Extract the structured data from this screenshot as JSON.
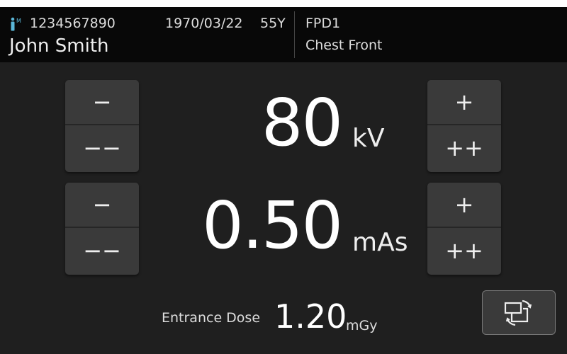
{
  "patient": {
    "icon": "patient-male-icon",
    "gender_mark": "M",
    "id": "1234567890",
    "name": "John Smith",
    "dob": "1970/03/22",
    "age": "55Y"
  },
  "exam": {
    "detector": "FPD1",
    "protocol": "Chest Front"
  },
  "kv": {
    "value": "80",
    "unit": "kV",
    "dec_small": "−",
    "dec_large": "−−",
    "inc_small": "+",
    "inc_large": "++"
  },
  "mas": {
    "value": "0.50",
    "unit": "mAs",
    "dec_small": "−",
    "dec_large": "−−",
    "inc_small": "+",
    "inc_large": "++"
  },
  "dose": {
    "label": "Entrance Dose",
    "value": "1.20",
    "unit": "mGy"
  },
  "colors": {
    "header": "#080808",
    "background": "#1f1f1f",
    "button": "#3a3a3a",
    "patient_icon": "#5bb7d8"
  }
}
